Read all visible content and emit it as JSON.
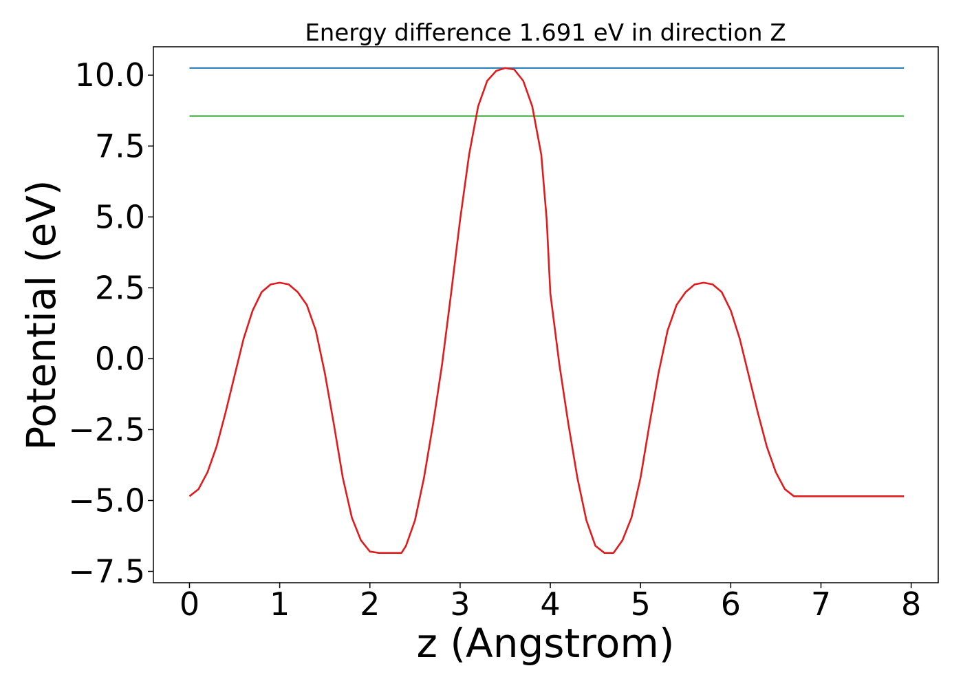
{
  "chart_data": {
    "type": "line",
    "title": "Energy difference 1.691 eV in direction Z",
    "xlabel": "z (Angstrom)",
    "ylabel": "Potential (eV)",
    "xlim": [
      -0.4,
      8.3
    ],
    "ylim": [
      -7.9,
      11.0
    ],
    "xticks": [
      0,
      1,
      2,
      3,
      4,
      5,
      6,
      7,
      8
    ],
    "xtick_labels": [
      "0",
      "1",
      "2",
      "3",
      "4",
      "5",
      "6",
      "7",
      "8"
    ],
    "yticks": [
      -7.5,
      -5.0,
      -2.5,
      0.0,
      2.5,
      5.0,
      7.5,
      10.0
    ],
    "ytick_labels": [
      "−7.5",
      "−5.0",
      "−2.5",
      "0.0",
      "2.5",
      "5.0",
      "7.5",
      "10.0"
    ],
    "grid": false,
    "series": [
      {
        "color": "#1f77b4",
        "x": [
          0.0,
          7.92
        ],
        "y": [
          10.25,
          10.25
        ]
      },
      {
        "color": "#2ca02c",
        "x": [
          0.0,
          7.92
        ],
        "y": [
          8.56,
          8.56
        ]
      },
      {
        "color": "#e31a1c",
        "x": [
          0.0,
          0.1,
          0.2,
          0.3,
          0.4,
          0.5,
          0.6,
          0.7,
          0.8,
          0.9,
          1.0,
          1.1,
          1.2,
          1.3,
          1.4,
          1.5,
          1.6,
          1.7,
          1.8,
          1.9,
          2.0,
          2.1,
          2.2,
          2.3,
          2.35,
          2.4,
          2.5,
          2.6,
          2.7,
          2.8,
          2.9,
          3.0,
          3.1,
          3.2,
          3.3,
          3.4,
          3.5,
          3.6,
          3.7,
          3.8,
          3.9,
          3.96,
          4.0,
          4.1,
          4.2,
          4.3,
          4.4,
          4.5,
          4.6,
          4.7,
          4.8,
          4.9,
          5.0,
          5.1,
          5.2,
          5.3,
          5.4,
          5.5,
          5.6,
          5.7,
          5.8,
          5.9,
          6.0,
          6.1,
          6.2,
          6.3,
          6.4,
          6.5,
          6.6,
          6.7,
          6.8,
          6.9,
          7.0,
          7.1,
          7.2,
          7.3,
          7.4,
          7.5,
          7.6,
          7.7,
          7.8,
          7.92
        ],
        "y": [
          -4.85,
          -4.6,
          -4.0,
          -3.1,
          -1.9,
          -0.6,
          0.7,
          1.7,
          2.35,
          2.62,
          2.68,
          2.62,
          2.35,
          1.9,
          1.0,
          -0.5,
          -2.3,
          -4.2,
          -5.6,
          -6.4,
          -6.8,
          -6.85,
          -6.85,
          -6.85,
          -6.85,
          -6.6,
          -5.7,
          -4.2,
          -2.3,
          -0.2,
          2.3,
          4.9,
          7.2,
          8.9,
          9.8,
          10.15,
          10.25,
          10.2,
          9.8,
          8.9,
          7.2,
          4.9,
          2.3,
          -0.2,
          -2.3,
          -4.2,
          -5.7,
          -6.6,
          -6.85,
          -6.85,
          -6.4,
          -5.6,
          -4.2,
          -2.3,
          -0.5,
          1.0,
          1.9,
          2.35,
          2.62,
          2.68,
          2.62,
          2.35,
          1.7,
          0.7,
          -0.6,
          -1.9,
          -3.1,
          -4.0,
          -4.6,
          -4.85,
          -4.85,
          -4.85,
          -4.85,
          -4.85,
          -4.85,
          -4.85,
          -4.85,
          -4.85,
          -4.85,
          -4.85,
          -4.85,
          -4.85
        ]
      }
    ]
  }
}
